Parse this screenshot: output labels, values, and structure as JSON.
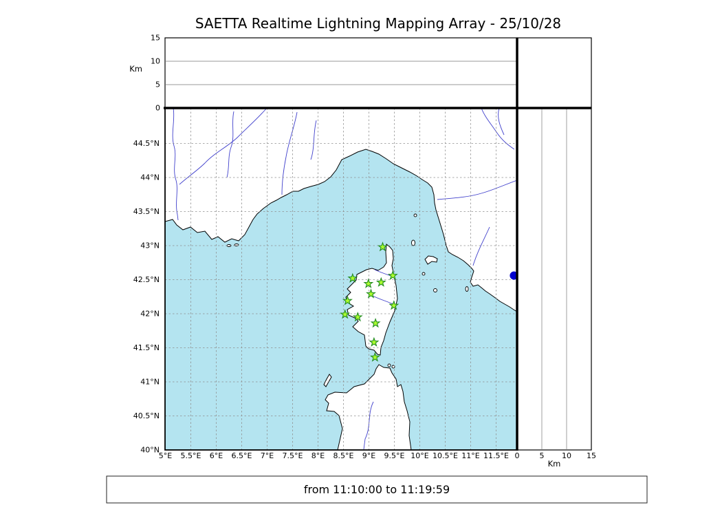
{
  "title": "SAETTA Realtime Lightning Mapping Array - 25/10/28",
  "footer": {
    "time_range": "from 11:10:00 to 11:19:59"
  },
  "chart_data": {
    "type": "scatter",
    "description": "Realtime Lightning Mapping Array display: altitude-vs-longitude panel (top), geographic map of the Corsica / Ligurian Sea region with LMA station markers (center), altitude-vs-latitude panel (right), and one detected event dot at the eastern map edge.",
    "panels": {
      "alt_vs_lon": {
        "ylabel": "Km",
        "ylim": [
          0,
          15
        ],
        "yticks": [
          {
            "v": 0,
            "label": "0"
          },
          {
            "v": 5,
            "label": "5"
          },
          {
            "v": 10,
            "label": "10"
          },
          {
            "v": 15,
            "label": "15"
          }
        ],
        "gridlines_km": [
          5,
          10
        ],
        "points": []
      },
      "map": {
        "xlim_lon": [
          5,
          11.91
        ],
        "ylim_lat": [
          40,
          45.02
        ],
        "grid": "dashed 0.5 degree",
        "lon_ticks": [
          {
            "v": 5,
            "label": "5°E"
          },
          {
            "v": 5.5,
            "label": "5.5°E"
          },
          {
            "v": 6,
            "label": "6°E"
          },
          {
            "v": 6.5,
            "label": "6.5°E"
          },
          {
            "v": 7,
            "label": "7°E"
          },
          {
            "v": 7.5,
            "label": "7.5°E"
          },
          {
            "v": 8,
            "label": "8°E"
          },
          {
            "v": 8.5,
            "label": "8.5°E"
          },
          {
            "v": 9,
            "label": "9°E"
          },
          {
            "v": 9.5,
            "label": "9.5°E"
          },
          {
            "v": 10,
            "label": "10°E"
          },
          {
            "v": 10.5,
            "label": "10.5°E"
          },
          {
            "v": 11,
            "label": "11°E"
          },
          {
            "v": 11.5,
            "label": "11.5°E"
          }
        ],
        "lat_ticks": [
          {
            "v": 40,
            "label": "40°N"
          },
          {
            "v": 40.5,
            "label": "40.5°N"
          },
          {
            "v": 41,
            "label": "41°N"
          },
          {
            "v": 41.5,
            "label": "41.5°N"
          },
          {
            "v": 42,
            "label": "42°N"
          },
          {
            "v": 42.5,
            "label": "42.5°N"
          },
          {
            "v": 43,
            "label": "43°N"
          },
          {
            "v": 43.5,
            "label": "43.5°N"
          },
          {
            "v": 44,
            "label": "44°N"
          },
          {
            "v": 44.5,
            "label": "44.5°N"
          }
        ],
        "stations": [
          {
            "lon": 9.27,
            "lat": 42.98
          },
          {
            "lon": 8.68,
            "lat": 42.52
          },
          {
            "lon": 8.99,
            "lat": 42.44
          },
          {
            "lon": 9.24,
            "lat": 42.46
          },
          {
            "lon": 9.47,
            "lat": 42.56
          },
          {
            "lon": 9.04,
            "lat": 42.29
          },
          {
            "lon": 8.58,
            "lat": 42.19
          },
          {
            "lon": 9.49,
            "lat": 42.12
          },
          {
            "lon": 8.53,
            "lat": 41.99
          },
          {
            "lon": 8.78,
            "lat": 41.95
          },
          {
            "lon": 9.13,
            "lat": 41.86
          },
          {
            "lon": 9.1,
            "lat": 41.58
          },
          {
            "lon": 9.12,
            "lat": 41.36
          }
        ],
        "events": [
          {
            "lon": 11.85,
            "lat": 42.56
          }
        ]
      },
      "alt_vs_lat": {
        "xlabel": "Km",
        "xlim": [
          0,
          15
        ],
        "xticks": [
          {
            "v": 0,
            "label": "0"
          },
          {
            "v": 5,
            "label": "5"
          },
          {
            "v": 10,
            "label": "10"
          },
          {
            "v": 15,
            "label": "15"
          }
        ],
        "gridlines_km": [
          5,
          10
        ],
        "points": []
      }
    },
    "colors": {
      "sea": "#b4e4f0",
      "land": "#ffffff",
      "coast": "#000000",
      "river": "#4040cc",
      "grid_dash": "#909090",
      "station_fill": "#adff2f",
      "station_edge": "#228b22",
      "event": "#0000cd"
    }
  }
}
